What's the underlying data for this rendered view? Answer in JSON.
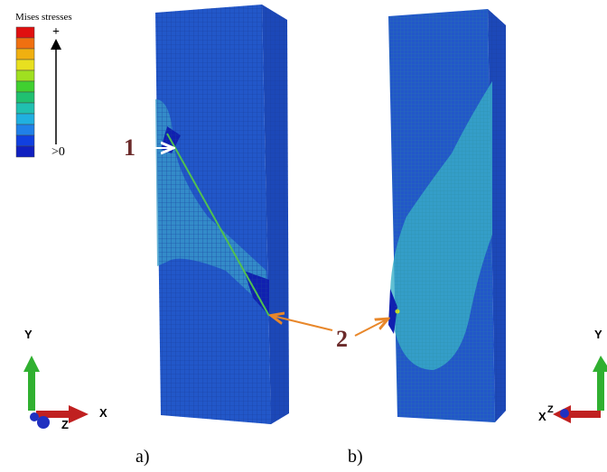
{
  "legend": {
    "title": "Mises stresses",
    "max_label": "+",
    "min_label": ">0"
  },
  "markers": {
    "crack_start": "1",
    "crack_end": "2"
  },
  "panels": {
    "a": "a)",
    "b": "b)"
  },
  "triad_left": {
    "y": "Y",
    "x": "X",
    "z": "Z"
  },
  "triad_right": {
    "y": "Y",
    "x": "X",
    "z": "Z"
  }
}
